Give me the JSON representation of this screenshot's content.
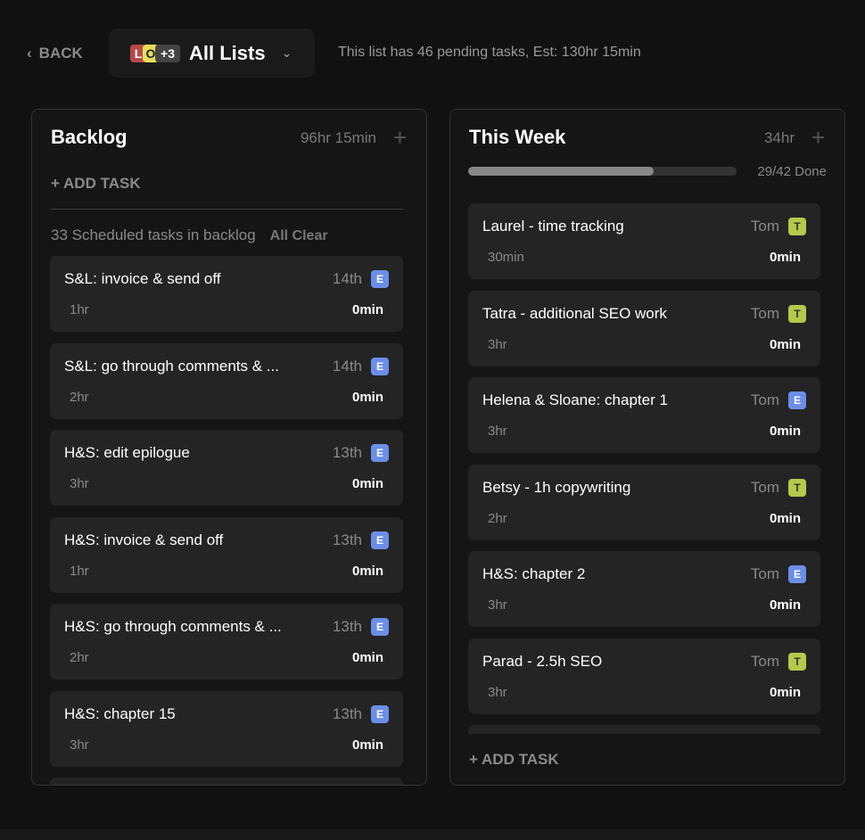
{
  "header": {
    "back": "BACK",
    "chips": [
      {
        "t": "L",
        "bg": "#b54a4a",
        "c": "#fff"
      },
      {
        "t": "O",
        "bg": "#e8dc5a",
        "c": "#222"
      },
      {
        "t": "+3",
        "bg": "#444",
        "c": "#fff"
      }
    ],
    "title": "All Lists",
    "info": "This list has 46 pending tasks, Est: 130hr 15min"
  },
  "backlog": {
    "title": "Backlog",
    "estimate": "96hr 15min",
    "add": "ADD TASK",
    "scheduled": "33 Scheduled tasks in backlog",
    "overlay": "All Clear",
    "cards": [
      {
        "title": "S&L: invoice & send off",
        "date": "14th",
        "badge": "E",
        "est": "1hr",
        "actual": "0min"
      },
      {
        "title": "S&L: go through comments & ...",
        "date": "14th",
        "badge": "E",
        "est": "2hr",
        "actual": "0min"
      },
      {
        "title": "H&S: edit epilogue",
        "date": "13th",
        "badge": "E",
        "est": "3hr",
        "actual": "0min"
      },
      {
        "title": "H&S: invoice & send off",
        "date": "13th",
        "badge": "E",
        "est": "1hr",
        "actual": "0min"
      },
      {
        "title": "H&S: go through comments & ...",
        "date": "13th",
        "badge": "E",
        "est": "2hr",
        "actual": "0min"
      },
      {
        "title": "H&S: chapter 15",
        "date": "13th",
        "badge": "E",
        "est": "3hr",
        "actual": "0min"
      }
    ]
  },
  "week": {
    "title": "This Week",
    "estimate": "34hr",
    "progress": 0.69,
    "done": "29/42 Done",
    "add": "ADD TASK",
    "cards": [
      {
        "title": "Laurel - time tracking",
        "who": "Tom",
        "badge": "T",
        "est": "30min",
        "actual": "0min"
      },
      {
        "title": "Tatra - additional SEO work",
        "who": "Tom",
        "badge": "T",
        "est": "3hr",
        "actual": "0min"
      },
      {
        "title": "Helena & Sloane: chapter 1",
        "who": "Tom",
        "badge": "E",
        "est": "3hr",
        "actual": "0min"
      },
      {
        "title": "Betsy - 1h copywriting",
        "who": "Tom",
        "badge": "T",
        "est": "2hr",
        "actual": "0min"
      },
      {
        "title": "H&S: chapter 2",
        "who": "Tom",
        "badge": "E",
        "est": "3hr",
        "actual": "0min"
      },
      {
        "title": "Parad - 2.5h SEO",
        "who": "Tom",
        "badge": "T",
        "est": "3hr",
        "actual": "0min"
      }
    ]
  },
  "colors": {
    "E": "#6b8fe8",
    "T": "#b5c94a"
  }
}
